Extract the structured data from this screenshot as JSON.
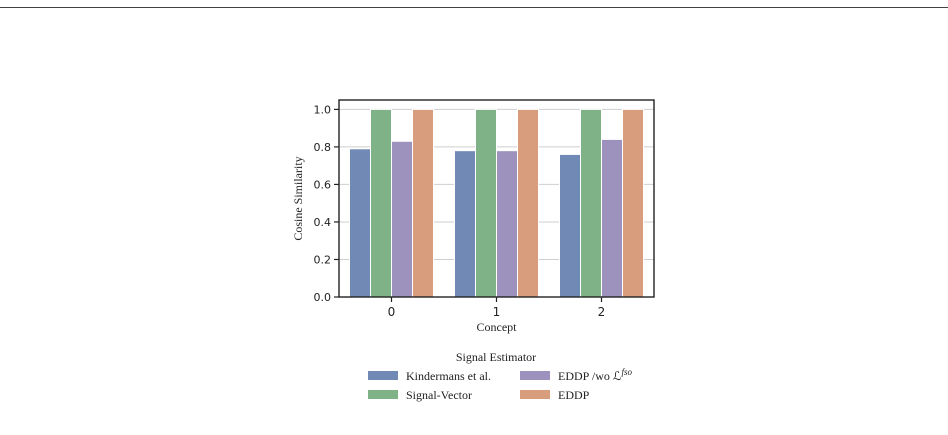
{
  "chart_data": {
    "type": "bar",
    "xlabel": "Concept",
    "ylabel": "Cosine Similarity",
    "categories": [
      "0",
      "1",
      "2"
    ],
    "ylim": [
      0,
      1.05
    ],
    "yticks": [
      "0.0",
      "0.2",
      "0.4",
      "0.6",
      "0.8",
      "1.0"
    ],
    "grid": "horizontal",
    "legend": {
      "title": "Signal Estimator",
      "placement": "below"
    },
    "series": [
      {
        "name": "Kindermans et al.",
        "values": [
          0.79,
          0.78,
          0.76
        ],
        "color": "#7089b5"
      },
      {
        "name": "Signal-Vector",
        "values": [
          1.0,
          1.0,
          1.0
        ],
        "color": "#7fb387"
      },
      {
        "name": "EDDP /wo ℒ",
        "sup": "fso",
        "values": [
          0.83,
          0.78,
          0.84
        ],
        "color": "#9d92be"
      },
      {
        "name": "EDDP",
        "values": [
          1.0,
          1.0,
          1.0
        ],
        "color": "#d89d7c"
      }
    ]
  }
}
